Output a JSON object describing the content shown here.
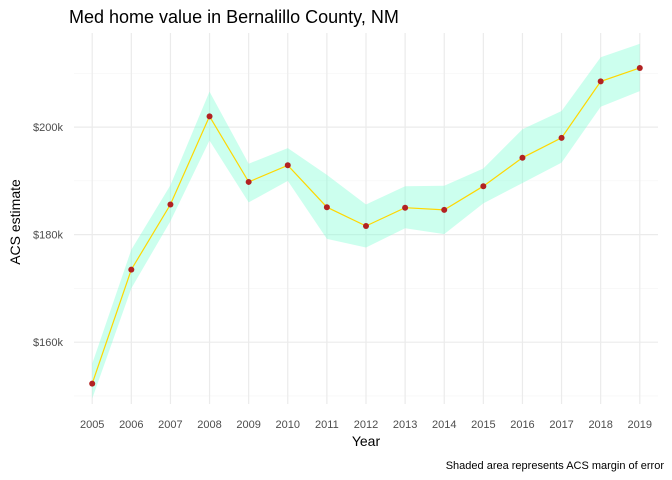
{
  "chart_data": {
    "type": "line",
    "title": "Med home value in Bernalillo County, NM",
    "xlabel": "Year",
    "ylabel": "ACS estimate",
    "caption": "Shaded area represents ACS margin of error",
    "x": [
      "2005",
      "2006",
      "2007",
      "2008",
      "2009",
      "2010",
      "2011",
      "2012",
      "2013",
      "2014",
      "2015",
      "2016",
      "2017",
      "2018",
      "2019"
    ],
    "series": [
      {
        "values": [
          152300,
          173500,
          185600,
          202000,
          189800,
          192900,
          185100,
          181600,
          185000,
          184600,
          189000,
          194300,
          198000,
          208500,
          211000
        ],
        "moe_lower": [
          149500,
          170000,
          182500,
          197500,
          186000,
          190000,
          179200,
          177600,
          181200,
          180100,
          185800,
          189600,
          193400,
          203800,
          206700
        ],
        "moe_upper": [
          156000,
          177200,
          189200,
          206600,
          193200,
          196100,
          191100,
          185600,
          189000,
          189100,
          192300,
          199600,
          203000,
          213000,
          215500
        ]
      }
    ],
    "y_ticks": [
      160000,
      180000,
      200000
    ],
    "y_tick_labels": [
      "$160k",
      "$180k",
      "$200k"
    ],
    "ylim": [
      148500,
      217500
    ],
    "grid": true,
    "colors": {
      "line": "#FFD700",
      "points": "#B22222",
      "ribbon": "#7FFFD4",
      "grid_major": "#EBEBEB",
      "grid_minor": "#F5F5F5"
    }
  }
}
